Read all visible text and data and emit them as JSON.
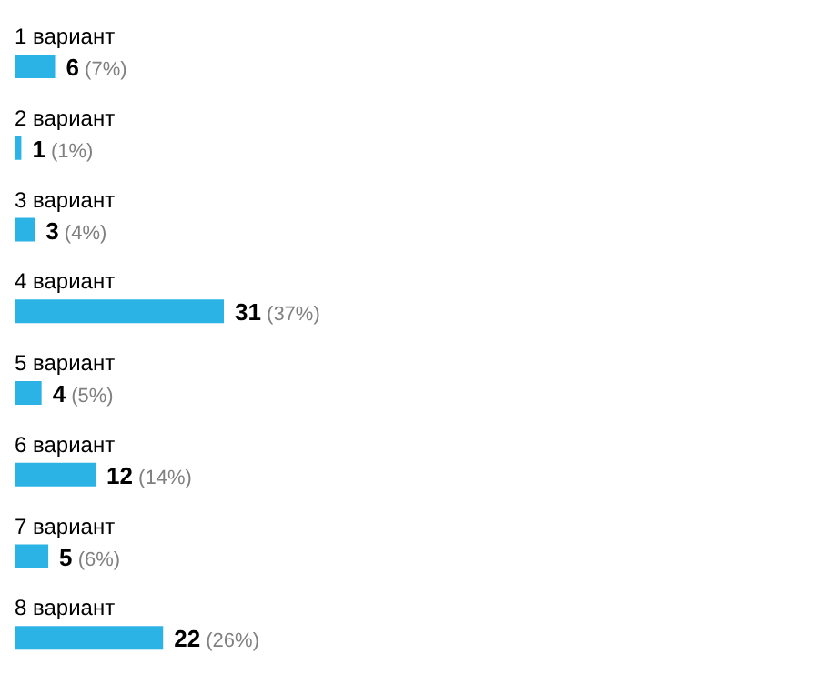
{
  "chart_data": {
    "type": "bar",
    "orientation": "horizontal",
    "categories": [
      "1 вариант",
      "2 вариант",
      "3 вариант",
      "4 вариант",
      "5 вариант",
      "6 вариант",
      "7 вариант",
      "8 вариант"
    ],
    "values": [
      6,
      1,
      3,
      31,
      4,
      12,
      5,
      22
    ],
    "color": "#2bb3e6",
    "value_labels": [
      "6 (7%)",
      "1 (1%)",
      "3 (4%)",
      "31 (37%)",
      "4 (5%)",
      "12 (14%)",
      "5 (6%)",
      "22 (26%)"
    ]
  }
}
